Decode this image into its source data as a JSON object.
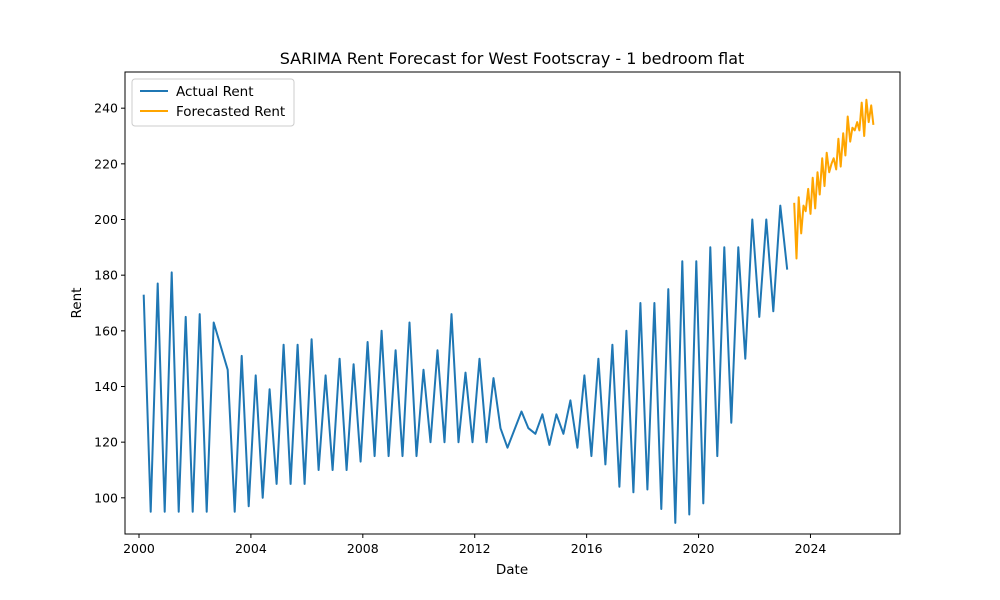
{
  "chart_data": {
    "type": "line",
    "title": "SARIMA Rent Forecast for West Footscray - 1 bedroom flat",
    "xlabel": "Date",
    "ylabel": "Rent",
    "xlim": [
      1999.5,
      2027.2
    ],
    "ylim": [
      87,
      253
    ],
    "x_ticks": [
      2000,
      2004,
      2008,
      2012,
      2016,
      2020,
      2024
    ],
    "y_ticks": [
      100,
      120,
      140,
      160,
      180,
      200,
      220,
      240
    ],
    "grid": false,
    "legend_position": "top-left",
    "series": [
      {
        "name": "Actual Rent",
        "color": "#1f77b4",
        "x": [
          2000.17,
          2000.42,
          2000.67,
          2000.92,
          2001.17,
          2001.42,
          2001.67,
          2001.92,
          2002.17,
          2002.42,
          2002.67,
          2003.17,
          2003.42,
          2003.67,
          2003.92,
          2004.17,
          2004.42,
          2004.67,
          2004.92,
          2005.17,
          2005.42,
          2005.67,
          2005.92,
          2006.17,
          2006.42,
          2006.67,
          2006.92,
          2007.17,
          2007.42,
          2007.67,
          2007.92,
          2008.17,
          2008.42,
          2008.67,
          2008.92,
          2009.17,
          2009.42,
          2009.67,
          2009.92,
          2010.17,
          2010.42,
          2010.67,
          2010.92,
          2011.17,
          2011.42,
          2011.67,
          2011.92,
          2012.17,
          2012.42,
          2012.67,
          2012.92,
          2013.17,
          2013.67,
          2013.92,
          2014.17,
          2014.42,
          2014.67,
          2014.92,
          2015.17,
          2015.42,
          2015.67,
          2015.92,
          2016.17,
          2016.42,
          2016.67,
          2016.92,
          2017.17,
          2017.42,
          2017.67,
          2017.92,
          2018.17,
          2018.42,
          2018.67,
          2018.92,
          2019.17,
          2019.42,
          2019.67,
          2019.92,
          2020.17,
          2020.42,
          2020.67,
          2020.92,
          2021.17,
          2021.42,
          2021.67,
          2021.92,
          2022.17,
          2022.42,
          2022.67,
          2022.92,
          2023.17
        ],
        "values": [
          173,
          95,
          177,
          95,
          181,
          95,
          165,
          95,
          166,
          95,
          163,
          146,
          95,
          151,
          97,
          144,
          100,
          139,
          105,
          155,
          105,
          155,
          105,
          157,
          110,
          144,
          110,
          150,
          110,
          148,
          113,
          156,
          115,
          160,
          115,
          153,
          115,
          163,
          115,
          146,
          120,
          153,
          120,
          166,
          120,
          145,
          120,
          150,
          120,
          143,
          125,
          118,
          131,
          125,
          123,
          130,
          119,
          130,
          123,
          135,
          118,
          144,
          115,
          150,
          112,
          155,
          104,
          160,
          102,
          170,
          103,
          170,
          96,
          175,
          91,
          185,
          94,
          185,
          98,
          190,
          115,
          190,
          127,
          190,
          150,
          200,
          165,
          200,
          167,
          205,
          182
        ]
      },
      {
        "name": "Forecasted Rent",
        "color": "#ffa500",
        "x": [
          2023.42,
          2023.5,
          2023.58,
          2023.67,
          2023.75,
          2023.83,
          2023.92,
          2024.0,
          2024.08,
          2024.17,
          2024.25,
          2024.33,
          2024.42,
          2024.5,
          2024.58,
          2024.67,
          2024.75,
          2024.83,
          2024.92,
          2025.0,
          2025.08,
          2025.17,
          2025.25,
          2025.33,
          2025.42,
          2025.5,
          2025.58,
          2025.67,
          2025.75,
          2025.83,
          2025.92,
          2026.0,
          2026.08,
          2026.17,
          2026.25
        ],
        "values": [
          206,
          186,
          208,
          195,
          205,
          203,
          211,
          202,
          215,
          204,
          217,
          209,
          222,
          212,
          224,
          217,
          220,
          222,
          218,
          229,
          219,
          231,
          223,
          237,
          228,
          233,
          232,
          235,
          232,
          242,
          230,
          243,
          235,
          241,
          234
        ]
      }
    ]
  }
}
